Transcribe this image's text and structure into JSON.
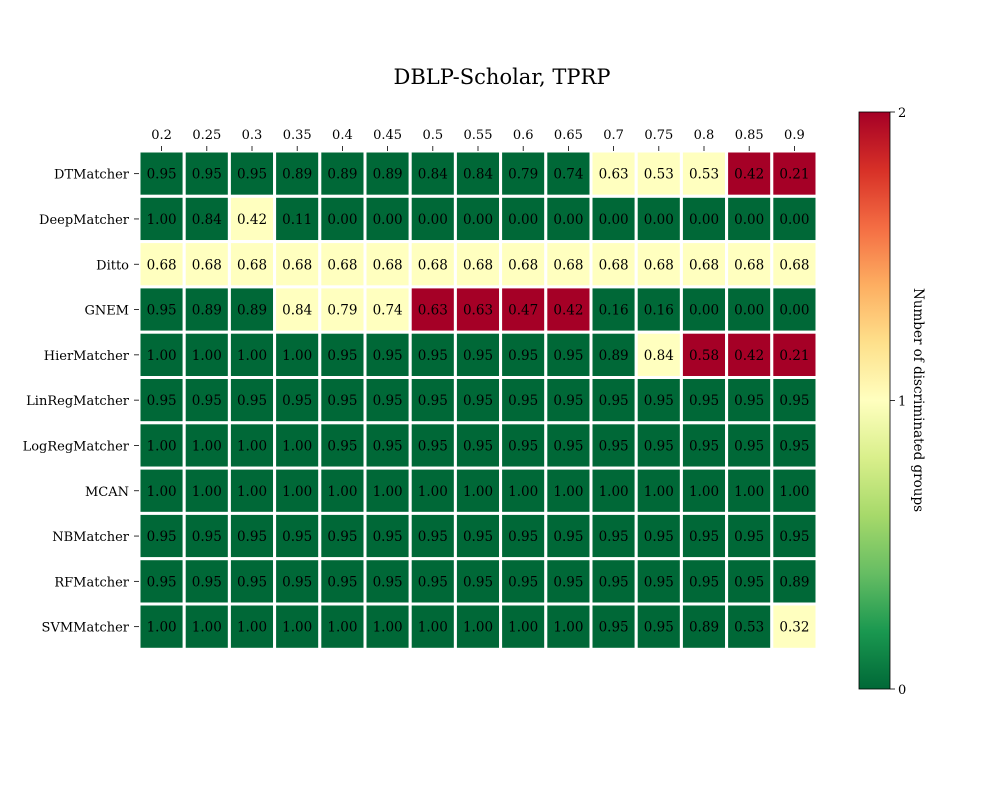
{
  "chart_data": {
    "type": "heatmap",
    "title": "DBLP-Scholar, TPRP",
    "x_ticks": [
      "0.2",
      "0.25",
      "0.3",
      "0.35",
      "0.4",
      "0.45",
      "0.5",
      "0.55",
      "0.6",
      "0.65",
      "0.7",
      "0.75",
      "0.8",
      "0.85",
      "0.9"
    ],
    "rows": [
      "DTMatcher",
      "DeepMatcher",
      "Ditto",
      "GNEM",
      "HierMatcher",
      "LinRegMatcher",
      "LogRegMatcher",
      "MCAN",
      "NBMatcher",
      "RFMatcher",
      "SVMMatcher"
    ],
    "labels": [
      [
        "0.95",
        "0.95",
        "0.95",
        "0.89",
        "0.89",
        "0.89",
        "0.84",
        "0.84",
        "0.79",
        "0.74",
        "0.63",
        "0.53",
        "0.53",
        "0.42",
        "0.21"
      ],
      [
        "1.00",
        "0.84",
        "0.42",
        "0.11",
        "0.00",
        "0.00",
        "0.00",
        "0.00",
        "0.00",
        "0.00",
        "0.00",
        "0.00",
        "0.00",
        "0.00",
        "0.00"
      ],
      [
        "0.68",
        "0.68",
        "0.68",
        "0.68",
        "0.68",
        "0.68",
        "0.68",
        "0.68",
        "0.68",
        "0.68",
        "0.68",
        "0.68",
        "0.68",
        "0.68",
        "0.68"
      ],
      [
        "0.95",
        "0.89",
        "0.89",
        "0.84",
        "0.79",
        "0.74",
        "0.63",
        "0.63",
        "0.47",
        "0.42",
        "0.16",
        "0.16",
        "0.00",
        "0.00",
        "0.00"
      ],
      [
        "1.00",
        "1.00",
        "1.00",
        "1.00",
        "0.95",
        "0.95",
        "0.95",
        "0.95",
        "0.95",
        "0.95",
        "0.89",
        "0.84",
        "0.58",
        "0.42",
        "0.21"
      ],
      [
        "0.95",
        "0.95",
        "0.95",
        "0.95",
        "0.95",
        "0.95",
        "0.95",
        "0.95",
        "0.95",
        "0.95",
        "0.95",
        "0.95",
        "0.95",
        "0.95",
        "0.95"
      ],
      [
        "1.00",
        "1.00",
        "1.00",
        "1.00",
        "0.95",
        "0.95",
        "0.95",
        "0.95",
        "0.95",
        "0.95",
        "0.95",
        "0.95",
        "0.95",
        "0.95",
        "0.95"
      ],
      [
        "1.00",
        "1.00",
        "1.00",
        "1.00",
        "1.00",
        "1.00",
        "1.00",
        "1.00",
        "1.00",
        "1.00",
        "1.00",
        "1.00",
        "1.00",
        "1.00",
        "1.00"
      ],
      [
        "0.95",
        "0.95",
        "0.95",
        "0.95",
        "0.95",
        "0.95",
        "0.95",
        "0.95",
        "0.95",
        "0.95",
        "0.95",
        "0.95",
        "0.95",
        "0.95",
        "0.95"
      ],
      [
        "0.95",
        "0.95",
        "0.95",
        "0.95",
        "0.95",
        "0.95",
        "0.95",
        "0.95",
        "0.95",
        "0.95",
        "0.95",
        "0.95",
        "0.95",
        "0.95",
        "0.89"
      ],
      [
        "1.00",
        "1.00",
        "1.00",
        "1.00",
        "1.00",
        "1.00",
        "1.00",
        "1.00",
        "1.00",
        "1.00",
        "0.95",
        "0.95",
        "0.89",
        "0.53",
        "0.32"
      ]
    ],
    "discriminated_groups": [
      [
        0,
        0,
        0,
        0,
        0,
        0,
        0,
        0,
        0,
        0,
        1,
        1,
        1,
        2,
        2
      ],
      [
        0,
        0,
        1,
        0,
        0,
        0,
        0,
        0,
        0,
        0,
        0,
        0,
        0,
        0,
        0
      ],
      [
        1,
        1,
        1,
        1,
        1,
        1,
        1,
        1,
        1,
        1,
        1,
        1,
        1,
        1,
        1
      ],
      [
        0,
        0,
        0,
        1,
        1,
        1,
        2,
        2,
        2,
        2,
        0,
        0,
        0,
        0,
        0
      ],
      [
        0,
        0,
        0,
        0,
        0,
        0,
        0,
        0,
        0,
        0,
        0,
        1,
        2,
        2,
        2
      ],
      [
        0,
        0,
        0,
        0,
        0,
        0,
        0,
        0,
        0,
        0,
        0,
        0,
        0,
        0,
        0
      ],
      [
        0,
        0,
        0,
        0,
        0,
        0,
        0,
        0,
        0,
        0,
        0,
        0,
        0,
        0,
        0
      ],
      [
        0,
        0,
        0,
        0,
        0,
        0,
        0,
        0,
        0,
        0,
        0,
        0,
        0,
        0,
        0
      ],
      [
        0,
        0,
        0,
        0,
        0,
        0,
        0,
        0,
        0,
        0,
        0,
        0,
        0,
        0,
        0
      ],
      [
        0,
        0,
        0,
        0,
        0,
        0,
        0,
        0,
        0,
        0,
        0,
        0,
        0,
        0,
        0
      ],
      [
        0,
        0,
        0,
        0,
        0,
        0,
        0,
        0,
        0,
        0,
        0,
        0,
        0,
        0,
        1
      ]
    ],
    "colorbar": {
      "label": "Number of discriminated groups",
      "range": [
        0,
        2
      ],
      "ticks": [
        "0",
        "1",
        "2"
      ],
      "colormap": "RdYlGn_r"
    },
    "colors": {
      "0": "#006837",
      "1": "#ffffbf",
      "2": "#a50026"
    },
    "x_axis_position": "top",
    "grid": false,
    "legend": "colorbar-right"
  }
}
